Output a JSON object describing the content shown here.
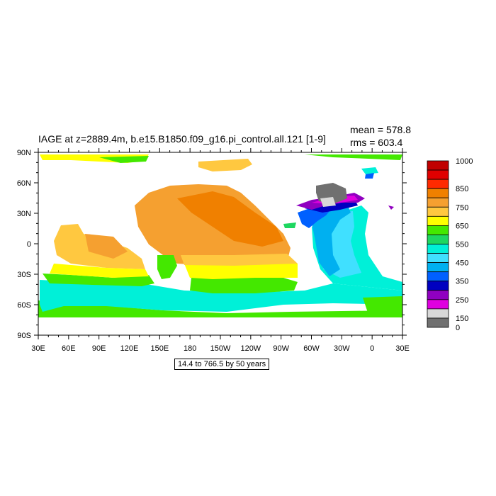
{
  "title": "IAGE at z=2889.4m, b.e15.B1850.f09_g16.pi_control.all.121 [1-9]",
  "stats": {
    "mean": "mean = 578.8",
    "rms": "rms = 603.4"
  },
  "range_note": "14.4 to 766.5 by 50 years",
  "axes": {
    "lon_ticks": [
      "30E",
      "60E",
      "90E",
      "120E",
      "150E",
      "180",
      "150W",
      "120W",
      "90W",
      "60W",
      "30W",
      "0",
      "30E"
    ],
    "lat_ticks": [
      "90N",
      "60N",
      "30N",
      "0",
      "30S",
      "60S",
      "90S"
    ]
  },
  "colorbar": {
    "labels": [
      "1000",
      "850",
      "750",
      "650",
      "550",
      "450",
      "350",
      "250",
      "150",
      "0"
    ],
    "colors": [
      "#c00000",
      "#e00000",
      "#ff2a00",
      "#f08000",
      "#f5a030",
      "#ffc840",
      "#ffff00",
      "#44e800",
      "#1ed760",
      "#00f0d8",
      "#40e0ff",
      "#00b0f0",
      "#0060ff",
      "#0000c0",
      "#9000c0",
      "#e000e0",
      "#d8d8d8",
      "#707070"
    ]
  }
}
